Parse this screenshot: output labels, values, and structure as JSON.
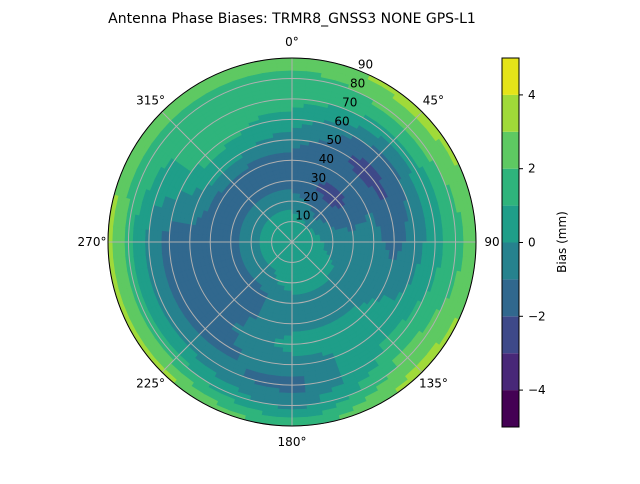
{
  "chart_data": {
    "type": "polar-contour",
    "title": "Antenna Phase Biases: TRMR8_GNSS3     NONE GPS-L1",
    "colorbar": {
      "label": "Bias (mm)",
      "range": [
        -5,
        5
      ],
      "levels": [
        -5,
        -4,
        -3,
        -2,
        -1,
        0,
        1,
        2,
        3,
        4,
        5
      ],
      "ticks": [
        -4,
        -2,
        0,
        2,
        4
      ],
      "tick_labels": [
        "−4",
        "−2",
        "0",
        "2",
        "4"
      ],
      "colormap": "viridis",
      "band_colors": [
        "#440154",
        "#482878",
        "#3e4989",
        "#31688e",
        "#26828e",
        "#1f9e89",
        "#2fb47c",
        "#5ec962",
        "#a0da39",
        "#e5e419"
      ]
    },
    "angular_axis": {
      "direction": "clockwise",
      "zero_location": "top",
      "tick_values": [
        0,
        45,
        90,
        135,
        180,
        225,
        270,
        315
      ],
      "tick_labels": [
        "0°",
        "45°",
        "90",
        "135°",
        "180°",
        "225°",
        "270°",
        "315°"
      ]
    },
    "radial_axis": {
      "range": [
        0,
        90
      ],
      "tick_values": [
        10,
        20,
        30,
        40,
        50,
        60,
        70,
        80,
        90
      ],
      "tick_labels": [
        "10",
        "20",
        "30",
        "40",
        "50",
        "60",
        "70",
        "80",
        "90"
      ]
    },
    "grid": true,
    "approx_grid": {
      "azimuths": [
        0,
        45,
        90,
        135,
        180,
        225,
        270,
        315
      ],
      "radii": [
        0,
        10,
        20,
        30,
        40,
        50,
        60,
        70,
        80,
        90
      ],
      "values": [
        [
          0.5,
          0.5,
          -0.5,
          -1.5,
          -1.5,
          -0.5,
          0.5,
          1.5,
          1.5,
          2.5
        ],
        [
          0.5,
          0.0,
          -1.5,
          -2.5,
          -1.5,
          -2.5,
          -1.5,
          0.5,
          2.5,
          3.5
        ],
        [
          0.5,
          0.5,
          -0.5,
          -0.5,
          -0.5,
          -1.5,
          -0.5,
          0.5,
          1.5,
          2.5
        ],
        [
          0.5,
          0.5,
          0.5,
          -0.5,
          -0.5,
          0.5,
          0.5,
          1.5,
          2.5,
          3.5
        ],
        [
          0.5,
          0.5,
          0.5,
          -0.5,
          -0.5,
          0.5,
          -0.5,
          -1.5,
          -0.5,
          1.5
        ],
        [
          0.5,
          0.5,
          -0.5,
          -1.5,
          -1.5,
          -1.5,
          -1.5,
          -0.5,
          1.5,
          3.5
        ],
        [
          0.5,
          0.5,
          -0.5,
          -1.5,
          -1.5,
          -1.5,
          -1.5,
          -0.5,
          1.5,
          3.5
        ],
        [
          0.5,
          0.5,
          -0.5,
          -1.5,
          -1.5,
          0.5,
          1.5,
          1.5,
          1.5,
          2.5
        ]
      ]
    }
  }
}
